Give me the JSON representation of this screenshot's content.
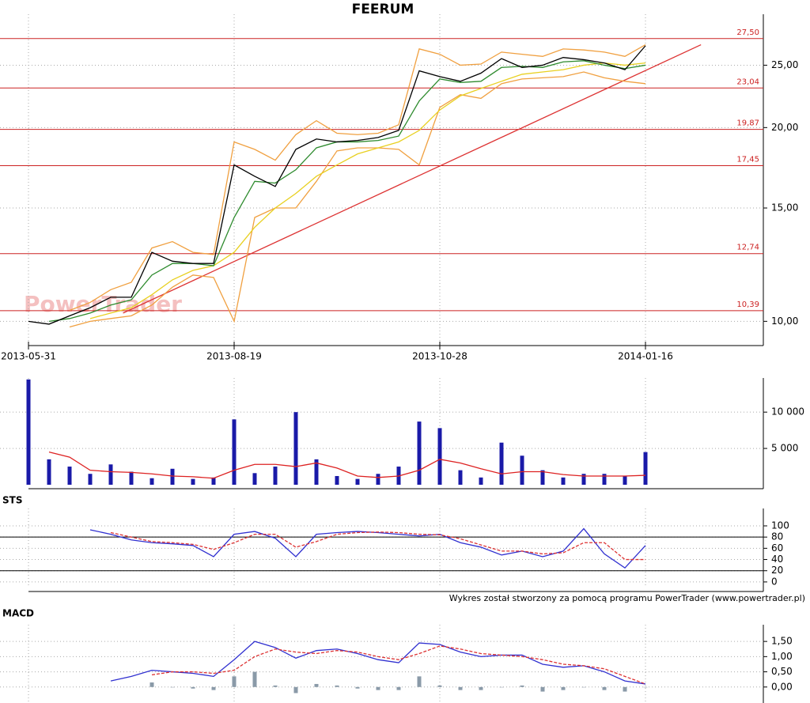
{
  "chart_data": [
    {
      "type": "line",
      "title": "FEERUM",
      "watermark": "PowerTrader",
      "log_scale": true,
      "grid": true,
      "categories": [
        "2013-05-31",
        null,
        null,
        null,
        null,
        null,
        null,
        null,
        null,
        null,
        "2013-08-19",
        null,
        null,
        null,
        null,
        null,
        null,
        null,
        null,
        null,
        "2013-10-28",
        null,
        null,
        null,
        null,
        null,
        null,
        null,
        null,
        null,
        "2014-01-16"
      ],
      "ylim": [
        9.3,
        30
      ],
      "yticks": [
        {
          "value": 10,
          "label": "10,00"
        },
        {
          "value": 15,
          "label": "15,00"
        },
        {
          "value": 20,
          "label": "20,00"
        },
        {
          "value": 25,
          "label": "25,00"
        }
      ],
      "levels": [
        {
          "value": 27.5,
          "label": "27,50"
        },
        {
          "value": 23.04,
          "label": "23,04"
        },
        {
          "value": 19.87,
          "label": "19,87"
        },
        {
          "value": 17.45,
          "label": "17,45"
        },
        {
          "value": 12.74,
          "label": "12,74"
        },
        {
          "value": 10.39,
          "label": "10,39"
        }
      ],
      "level_color": "#cc2222",
      "trendline": {
        "x": [
          4.6,
          32.7
        ],
        "values": [
          10.3,
          26.9
        ],
        "color": "#dd3333"
      },
      "series": [
        {
          "type": "line",
          "color": "#f0a040",
          "values": [
            null,
            null,
            10.4,
            10.7,
            11.2,
            11.5,
            13.0,
            13.3,
            12.8,
            12.7,
            19.0,
            18.5,
            17.8,
            19.5,
            20.5,
            19.6,
            19.5,
            19.6,
            20.2,
            26.5,
            26.0,
            25.0,
            25.1,
            26.2,
            26.0,
            25.8,
            26.5,
            26.4,
            26.2,
            25.8,
            26.9
          ]
        },
        {
          "type": "line",
          "color": "#f0a040",
          "values": [
            null,
            null,
            9.8,
            10.0,
            10.1,
            10.2,
            10.6,
            11.3,
            11.8,
            11.7,
            10.0,
            14.5,
            15.0,
            15.0,
            16.5,
            18.4,
            18.6,
            18.6,
            18.5,
            17.5,
            21.5,
            22.5,
            22.2,
            23.4,
            23.8,
            23.9,
            24.0,
            24.4,
            23.9,
            23.6,
            23.4
          ]
        },
        {
          "type": "line",
          "color": "#e8d020",
          "values": [
            null,
            null,
            null,
            10.1,
            10.3,
            10.5,
            11.0,
            11.6,
            12.0,
            12.2,
            12.8,
            14.0,
            15.0,
            15.8,
            16.8,
            17.5,
            18.2,
            18.6,
            19.0,
            19.8,
            21.3,
            22.4,
            23.0,
            23.6,
            24.2,
            24.4,
            24.6,
            25.0,
            25.2,
            25.0,
            25.2
          ]
        },
        {
          "type": "line",
          "color": "#2e8b2e",
          "values": [
            null,
            10.0,
            10.1,
            10.3,
            10.6,
            10.8,
            11.8,
            12.3,
            12.3,
            12.2,
            14.5,
            16.5,
            16.4,
            17.2,
            18.6,
            19.0,
            19.0,
            19.1,
            19.4,
            22.0,
            23.8,
            23.5,
            23.6,
            24.8,
            24.9,
            24.8,
            25.3,
            25.4,
            25.0,
            24.7,
            25.0
          ]
        },
        {
          "type": "line",
          "color": "#000000",
          "values": [
            10.0,
            9.9,
            10.2,
            10.5,
            10.9,
            10.9,
            12.8,
            12.4,
            12.3,
            12.3,
            17.5,
            16.8,
            16.2,
            18.5,
            19.2,
            19.0,
            19.1,
            19.3,
            19.8,
            24.5,
            24.0,
            23.6,
            24.3,
            25.6,
            24.8,
            25.0,
            25.7,
            25.5,
            25.2,
            24.6,
            26.8
          ]
        }
      ]
    },
    {
      "type": "bar",
      "ylim": [
        0,
        14700
      ],
      "grid": true,
      "yticks": [
        {
          "value": 5000,
          "label": "5 000"
        },
        {
          "value": 10000,
          "label": "10 000"
        }
      ],
      "series": [
        {
          "type": "bar",
          "color": "#1a1aa8",
          "values": [
            14500,
            3500,
            2500,
            1500,
            2800,
            1800,
            900,
            2200,
            800,
            1000,
            9000,
            1600,
            2500,
            10000,
            3500,
            1200,
            800,
            1500,
            2500,
            8700,
            7800,
            2000,
            1000,
            5800,
            4000,
            2000,
            1000,
            1500,
            1500,
            1200,
            4500
          ]
        },
        {
          "type": "line",
          "color": "#dd2222",
          "values": [
            null,
            4500,
            3800,
            2000,
            1800,
            1700,
            1500,
            1200,
            1100,
            900,
            2000,
            2800,
            2800,
            2500,
            3000,
            2300,
            1200,
            1000,
            1200,
            2000,
            3500,
            3000,
            2200,
            1500,
            1800,
            1800,
            1400,
            1200,
            1200,
            1200,
            1300
          ]
        }
      ]
    },
    {
      "type": "line",
      "title": "STS",
      "ylim": [
        -10,
        131
      ],
      "grid": true,
      "yticks": [
        0,
        20,
        40,
        60,
        80,
        100
      ],
      "levels": [
        {
          "value": 80,
          "label": null
        },
        {
          "value": 20,
          "label": null
        }
      ],
      "level_color": "#000000",
      "series": [
        {
          "type": "line",
          "color": "#3030d0",
          "values": [
            null,
            null,
            null,
            93,
            85,
            75,
            70,
            68,
            65,
            45,
            85,
            90,
            78,
            45,
            85,
            88,
            90,
            88,
            85,
            82,
            85,
            70,
            62,
            48,
            55,
            45,
            55,
            95,
            50,
            25,
            65
          ]
        },
        {
          "type": "line",
          "color": "#dd3333",
          "dash": true,
          "values": [
            null,
            null,
            null,
            null,
            88,
            80,
            72,
            70,
            67,
            58,
            70,
            85,
            85,
            62,
            72,
            85,
            88,
            89,
            88,
            85,
            84,
            77,
            66,
            55,
            55,
            50,
            52,
            70,
            70,
            40,
            40
          ]
        }
      ]
    },
    {
      "type": "line",
      "title": "MACD",
      "footer": "Wykres został stworzony za pomocą programu PowerTrader (www.powertrader.pl)",
      "ylim": [
        -0.5,
        2.05
      ],
      "grid": true,
      "yticks": [
        {
          "value": 0,
          "label": "0,00"
        },
        {
          "value": 0.5,
          "label": "0,50"
        },
        {
          "value": 1,
          "label": "1,00"
        },
        {
          "value": 1.5,
          "label": "1,50"
        }
      ],
      "series": [
        {
          "type": "bar",
          "color": "#8a9aa8",
          "values": [
            null,
            null,
            null,
            null,
            null,
            null,
            0.15,
            0,
            -0.05,
            -0.1,
            0.35,
            0.5,
            0.05,
            -0.2,
            0.1,
            0.05,
            -0.05,
            -0.1,
            -0.1,
            0.35,
            0.05,
            -0.1,
            -0.1,
            0,
            0.05,
            -0.15,
            -0.1,
            0,
            -0.1,
            -0.15,
            0
          ]
        },
        {
          "type": "line",
          "color": "#3030d0",
          "values": [
            null,
            null,
            null,
            null,
            0.2,
            0.35,
            0.55,
            0.5,
            0.45,
            0.35,
            0.9,
            1.5,
            1.3,
            0.95,
            1.2,
            1.25,
            1.1,
            0.9,
            0.8,
            1.45,
            1.4,
            1.15,
            1.0,
            1.05,
            1.05,
            0.75,
            0.65,
            0.7,
            0.5,
            0.2,
            0.1
          ]
        },
        {
          "type": "line",
          "color": "#dd3333",
          "dash": true,
          "values": [
            null,
            null,
            null,
            null,
            null,
            null,
            0.4,
            0.5,
            0.5,
            0.45,
            0.55,
            1.0,
            1.25,
            1.15,
            1.1,
            1.2,
            1.15,
            1.0,
            0.9,
            1.1,
            1.35,
            1.25,
            1.1,
            1.05,
            1.0,
            0.9,
            0.75,
            0.7,
            0.6,
            0.35,
            0.1
          ]
        }
      ]
    }
  ]
}
